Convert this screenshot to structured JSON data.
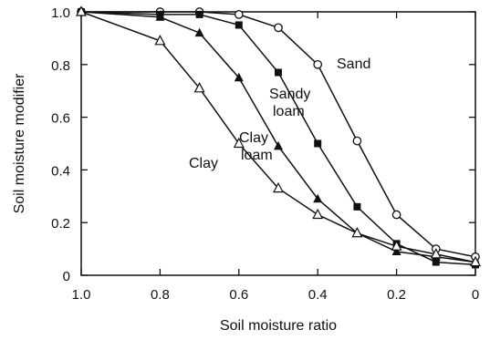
{
  "chart_data": {
    "type": "line",
    "title": "",
    "xlabel": "Soil moisture ratio",
    "ylabel": "Soil moisture modifier",
    "xlim": [
      1.0,
      0
    ],
    "ylim": [
      0,
      1.0
    ],
    "x_reversed": true,
    "grid": false,
    "legend": "none",
    "xticks": [
      1.0,
      0.8,
      0.6,
      0.4,
      0.2,
      0
    ],
    "xtick_labels": [
      "1.0",
      "0.8",
      "0.6",
      "0.4",
      "0.2",
      "0"
    ],
    "yticks": [
      0,
      0.2,
      0.4,
      0.6,
      0.8,
      1.0
    ],
    "ytick_labels": [
      "0",
      "0.2",
      "0.4",
      "0.6",
      "0.8",
      "1.0"
    ],
    "series": [
      {
        "name": "Sand",
        "marker": "open-circle",
        "label_lines": [
          "Sand"
        ],
        "x": [
          1.0,
          0.8,
          0.7,
          0.6,
          0.5,
          0.4,
          0.3,
          0.2,
          0.1,
          0.0
        ],
        "y": [
          1.0,
          1.0,
          1.0,
          0.99,
          0.94,
          0.8,
          0.51,
          0.23,
          0.1,
          0.07
        ]
      },
      {
        "name": "Sandy loam",
        "marker": "filled-square",
        "label_lines": [
          "Sandy",
          "loam"
        ],
        "x": [
          1.0,
          0.8,
          0.7,
          0.6,
          0.5,
          0.4,
          0.3,
          0.2,
          0.1,
          0.0
        ],
        "y": [
          1.0,
          0.99,
          0.99,
          0.95,
          0.77,
          0.5,
          0.26,
          0.12,
          0.05,
          0.04
        ]
      },
      {
        "name": "Clay loam",
        "marker": "filled-triangle",
        "label_lines": [
          "Clay",
          "loam"
        ],
        "x": [
          1.0,
          0.8,
          0.7,
          0.6,
          0.5,
          0.4,
          0.3,
          0.2,
          0.1,
          0.0
        ],
        "y": [
          1.0,
          0.98,
          0.92,
          0.75,
          0.49,
          0.29,
          0.16,
          0.09,
          0.07,
          0.05
        ]
      },
      {
        "name": "Clay",
        "marker": "open-triangle",
        "label_lines": [
          "Clay"
        ],
        "x": [
          1.0,
          0.8,
          0.7,
          0.6,
          0.5,
          0.4,
          0.3,
          0.2,
          0.1,
          0.0
        ],
        "y": [
          1.0,
          0.89,
          0.71,
          0.5,
          0.33,
          0.23,
          0.16,
          0.11,
          0.08,
          0.05
        ]
      }
    ]
  }
}
